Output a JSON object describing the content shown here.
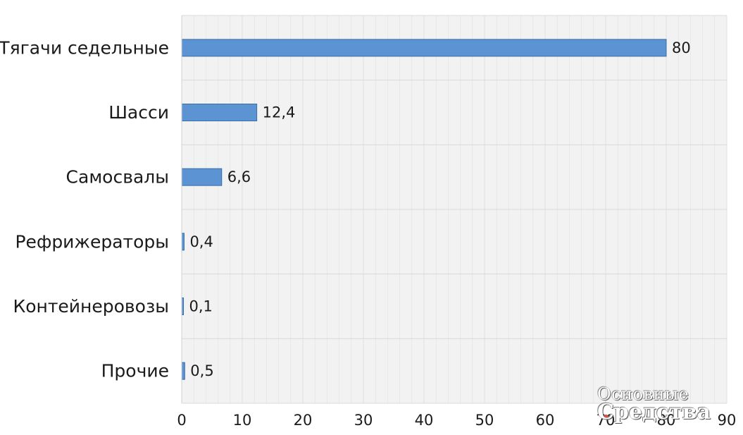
{
  "chart_data": {
    "type": "bar",
    "orientation": "horizontal",
    "categories": [
      "Тягачи седельные",
      "Шасси",
      "Самосвалы",
      "Рефрижераторы",
      "Контейнеровозы",
      "Прочие"
    ],
    "values": [
      80,
      12.4,
      6.6,
      0.4,
      0.1,
      0.5
    ],
    "value_labels": [
      "80",
      "12,4",
      "6,6",
      "0,4",
      "0,1",
      "0,5"
    ],
    "xlim": [
      0,
      90
    ],
    "xticks": [
      "0",
      "10",
      "20",
      "30",
      "40",
      "50",
      "60",
      "70",
      "80",
      "90"
    ],
    "grid": true,
    "bar_color": "#5b93d3",
    "bar_edge_color": "#3a6ea8",
    "plot_background": "#f2f2f2",
    "grid_color": "#e0e0e0"
  },
  "watermark": {
    "line1": "Основные",
    "line2": "Средства"
  }
}
